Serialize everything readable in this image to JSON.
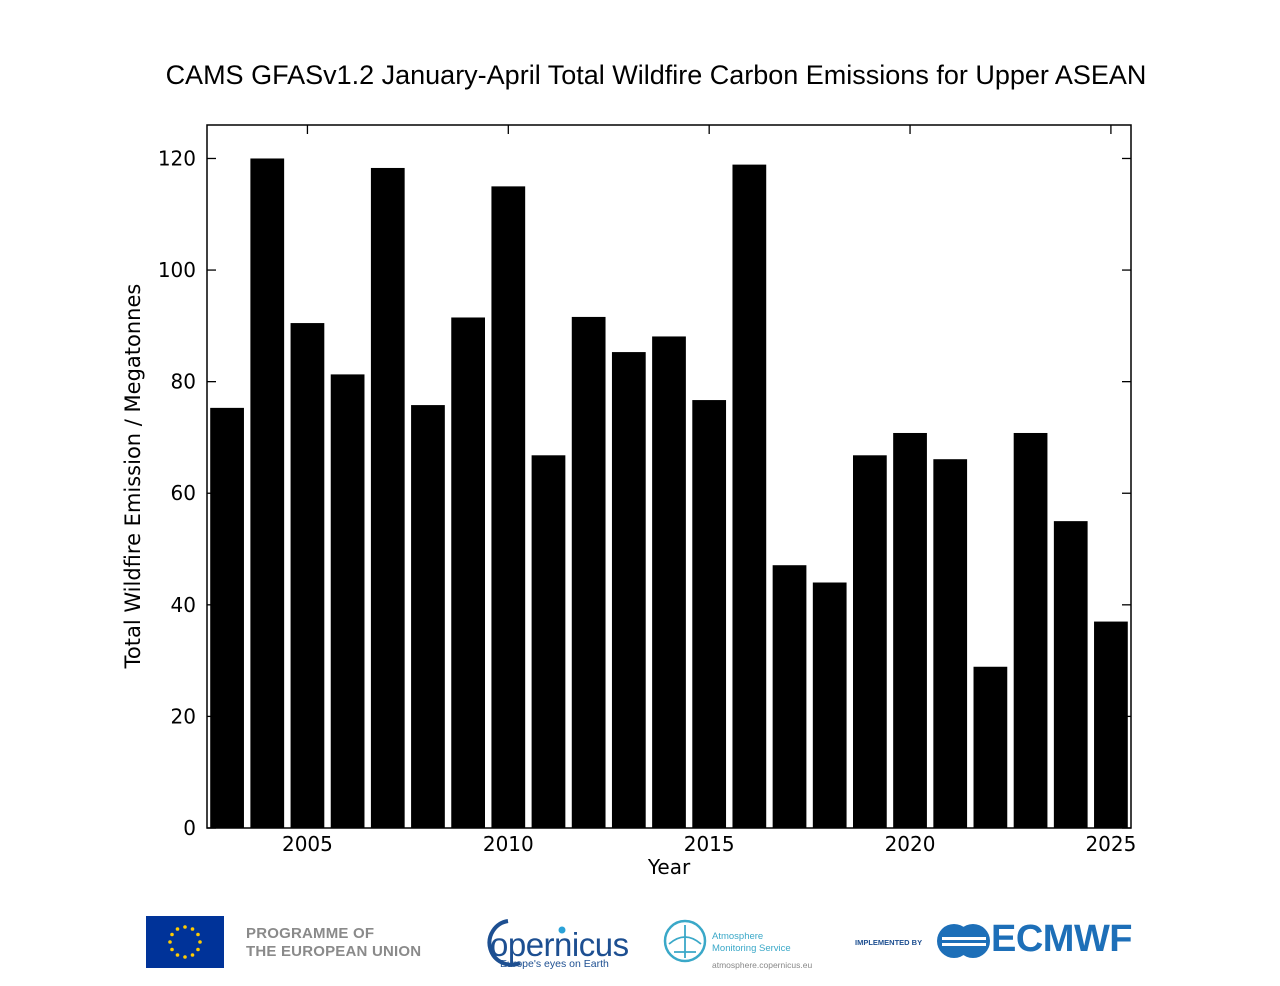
{
  "chart_data": {
    "type": "bar",
    "title": "CAMS GFASv1.2 January-April Total Wildfire Carbon Emissions for Upper ASEAN",
    "xlabel": "Year",
    "ylabel": "Total Wildfire Emission / Megatonnes",
    "categories": [
      2003,
      2004,
      2005,
      2006,
      2007,
      2008,
      2009,
      2010,
      2011,
      2012,
      2013,
      2014,
      2015,
      2016,
      2017,
      2018,
      2019,
      2020,
      2021,
      2022,
      2023,
      2024,
      2025
    ],
    "values": [
      75.3,
      120.0,
      90.5,
      81.3,
      118.3,
      75.8,
      91.5,
      115.0,
      66.8,
      91.6,
      85.3,
      88.1,
      76.7,
      118.9,
      47.1,
      44.0,
      66.8,
      70.8,
      66.1,
      28.9,
      70.8,
      55.0,
      37.0
    ],
    "ylim": [
      0,
      126
    ],
    "yticks": [
      0,
      20,
      40,
      60,
      80,
      100,
      120
    ],
    "xticks": [
      2005,
      2010,
      2015,
      2020,
      2025
    ],
    "bar_color": "#000000",
    "grid": false
  },
  "footer": {
    "eu_line1": "PROGRAMME OF",
    "eu_line2": "THE EUROPEAN UNION",
    "copernicus_word": "opernicus",
    "copernicus_tagline": "Europe's eyes on Earth",
    "ams_line1": "Atmosphere",
    "ams_line2": "Monitoring Service",
    "ams_url": "atmosphere.copernicus.eu",
    "implemented_by": "IMPLEMENTED BY",
    "ecmwf": "ECMWF",
    "eu_flag_color": "#003399",
    "eu_star_color": "#ffcc00",
    "copernicus_color": "#1d4f91",
    "ams_color": "#3aa8c8",
    "ecmwf_color": "#1d6fb8"
  }
}
